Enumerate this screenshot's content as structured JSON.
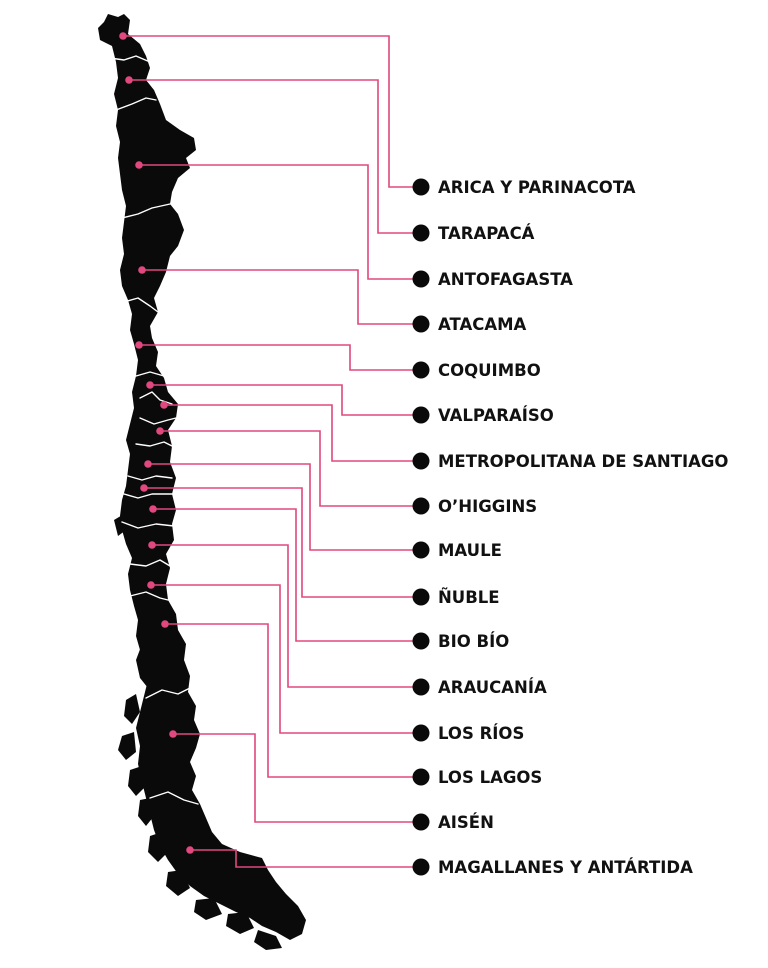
{
  "colors": {
    "landmass": "#0a0a0a",
    "border": "#ffffff",
    "leader": "#e0487f",
    "dot": "#e0487f",
    "marker": "#0a0a0a",
    "text": "#111111",
    "background": "#ffffff"
  },
  "regions": [
    {
      "name": "ARICA Y PARINACOTA"
    },
    {
      "name": "TARAPACÁ"
    },
    {
      "name": "ANTOFAGASTA"
    },
    {
      "name": "ATACAMA"
    },
    {
      "name": "COQUIMBO"
    },
    {
      "name": "VALPARAÍSO"
    },
    {
      "name": "METROPOLITANA DE SANTIAGO"
    },
    {
      "name": "O’HIGGINS"
    },
    {
      "name": "MAULE"
    },
    {
      "name": "ÑUBLE"
    },
    {
      "name": "BIO BÍO"
    },
    {
      "name": "ARAUCANÍA"
    },
    {
      "name": "LOS RÍOS"
    },
    {
      "name": "LOS LAGOS"
    },
    {
      "name": "AISÉN"
    },
    {
      "name": "MAGALLANES Y ANTÁRTIDA"
    }
  ]
}
